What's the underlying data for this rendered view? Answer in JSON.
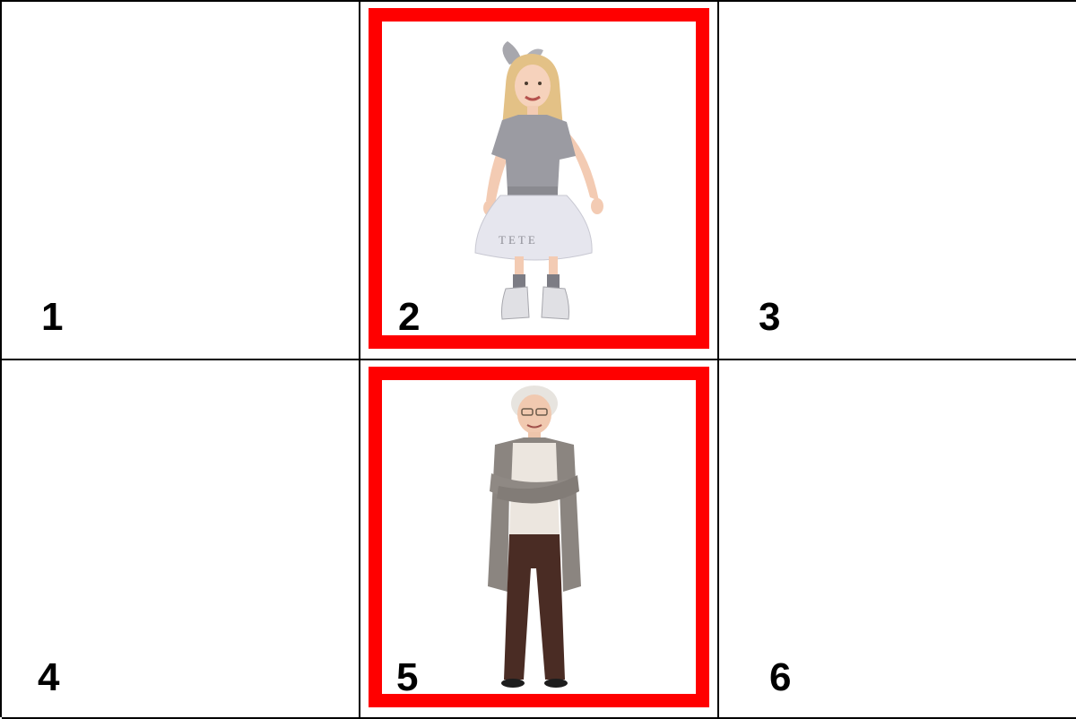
{
  "cells": [
    {
      "number": "1",
      "has_photo": false
    },
    {
      "number": "2",
      "has_photo": true,
      "photo": "girl-in-grey-tutu"
    },
    {
      "number": "3",
      "has_photo": false
    },
    {
      "number": "4",
      "has_photo": false
    },
    {
      "number": "5",
      "has_photo": true,
      "photo": "elderly-woman-arms-crossed"
    },
    {
      "number": "6",
      "has_photo": false
    }
  ],
  "colors": {
    "frame": "#ff0000",
    "grid_lines": "#000000",
    "background": "#ffffff"
  }
}
